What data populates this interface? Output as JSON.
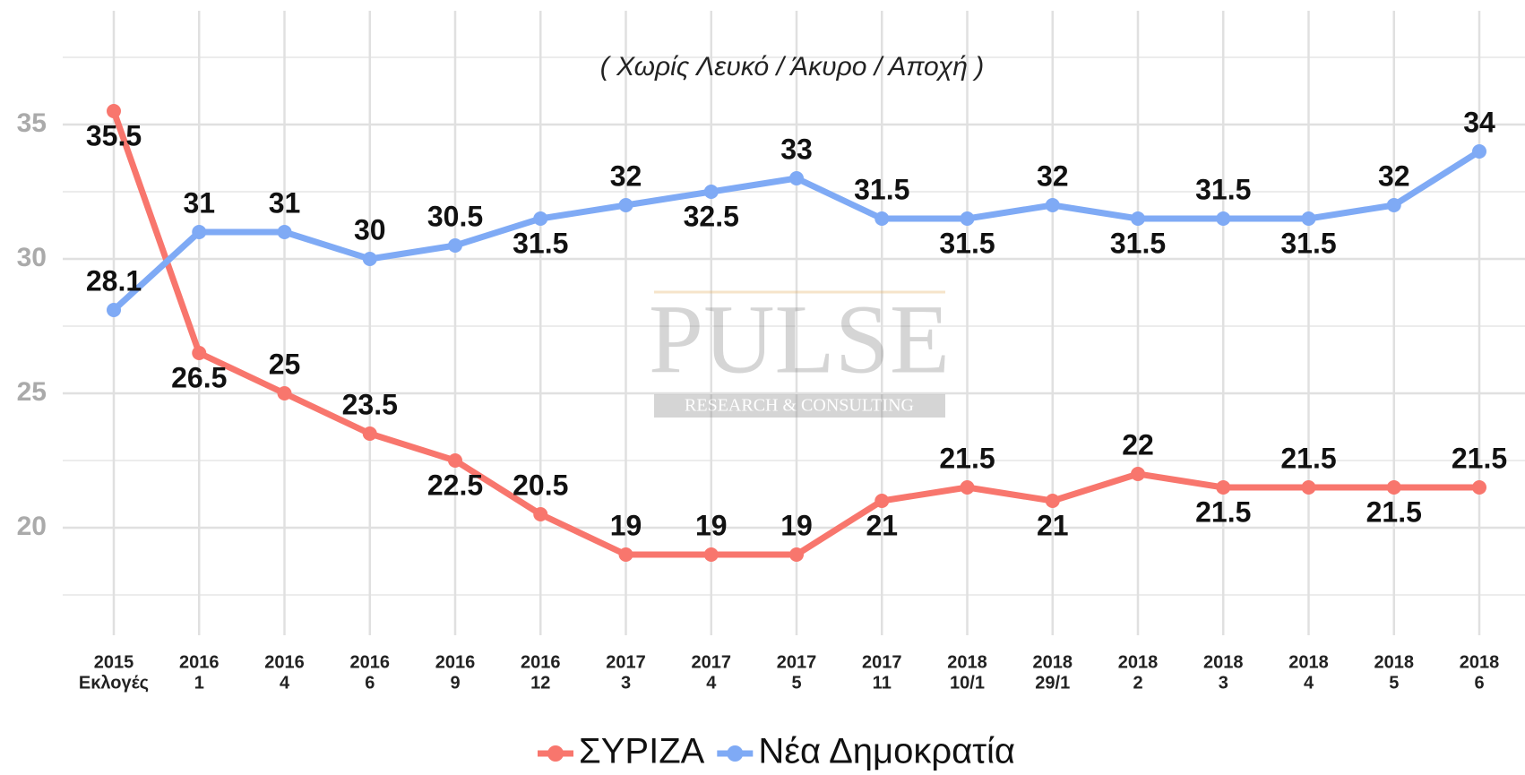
{
  "chart_data": {
    "type": "line",
    "subtitle": "( Χωρίς Λευκό / Άκυρο / Αποχή )",
    "watermark": {
      "title": "PULSE",
      "subtitle": "RESEARCH & CONSULTING"
    },
    "categories": [
      [
        "2015",
        "Εκλογές"
      ],
      [
        "2016",
        "1"
      ],
      [
        "2016",
        "4"
      ],
      [
        "2016",
        "6"
      ],
      [
        "2016",
        "9"
      ],
      [
        "2016",
        "12"
      ],
      [
        "2017",
        "3"
      ],
      [
        "2017",
        "4"
      ],
      [
        "2017",
        "5"
      ],
      [
        "2017",
        "11"
      ],
      [
        "2018",
        "10/1"
      ],
      [
        "2018",
        "29/1"
      ],
      [
        "2018",
        "2"
      ],
      [
        "2018",
        "3"
      ],
      [
        "2018",
        "4"
      ],
      [
        "2018",
        "5"
      ],
      [
        "2018",
        "6"
      ]
    ],
    "series": [
      {
        "name": "ΣΥΡΙΖΑ",
        "color": "#f8766d",
        "values": [
          35.5,
          26.5,
          25,
          23.5,
          22.5,
          20.5,
          19,
          19,
          19,
          21,
          21.5,
          21,
          22,
          21.5,
          21.5,
          21.5,
          21.5
        ]
      },
      {
        "name": "Νέα Δημοκρατία",
        "color": "#7faaf5",
        "values": [
          28.1,
          31,
          31,
          30,
          30.5,
          31.5,
          32,
          32.5,
          33,
          31.5,
          31.5,
          32,
          31.5,
          31.5,
          31.5,
          32,
          34
        ]
      }
    ],
    "ylim": [
      16,
      38
    ],
    "yticks": [
      20,
      25,
      30,
      35
    ],
    "grid": true,
    "legend": "bottom"
  }
}
